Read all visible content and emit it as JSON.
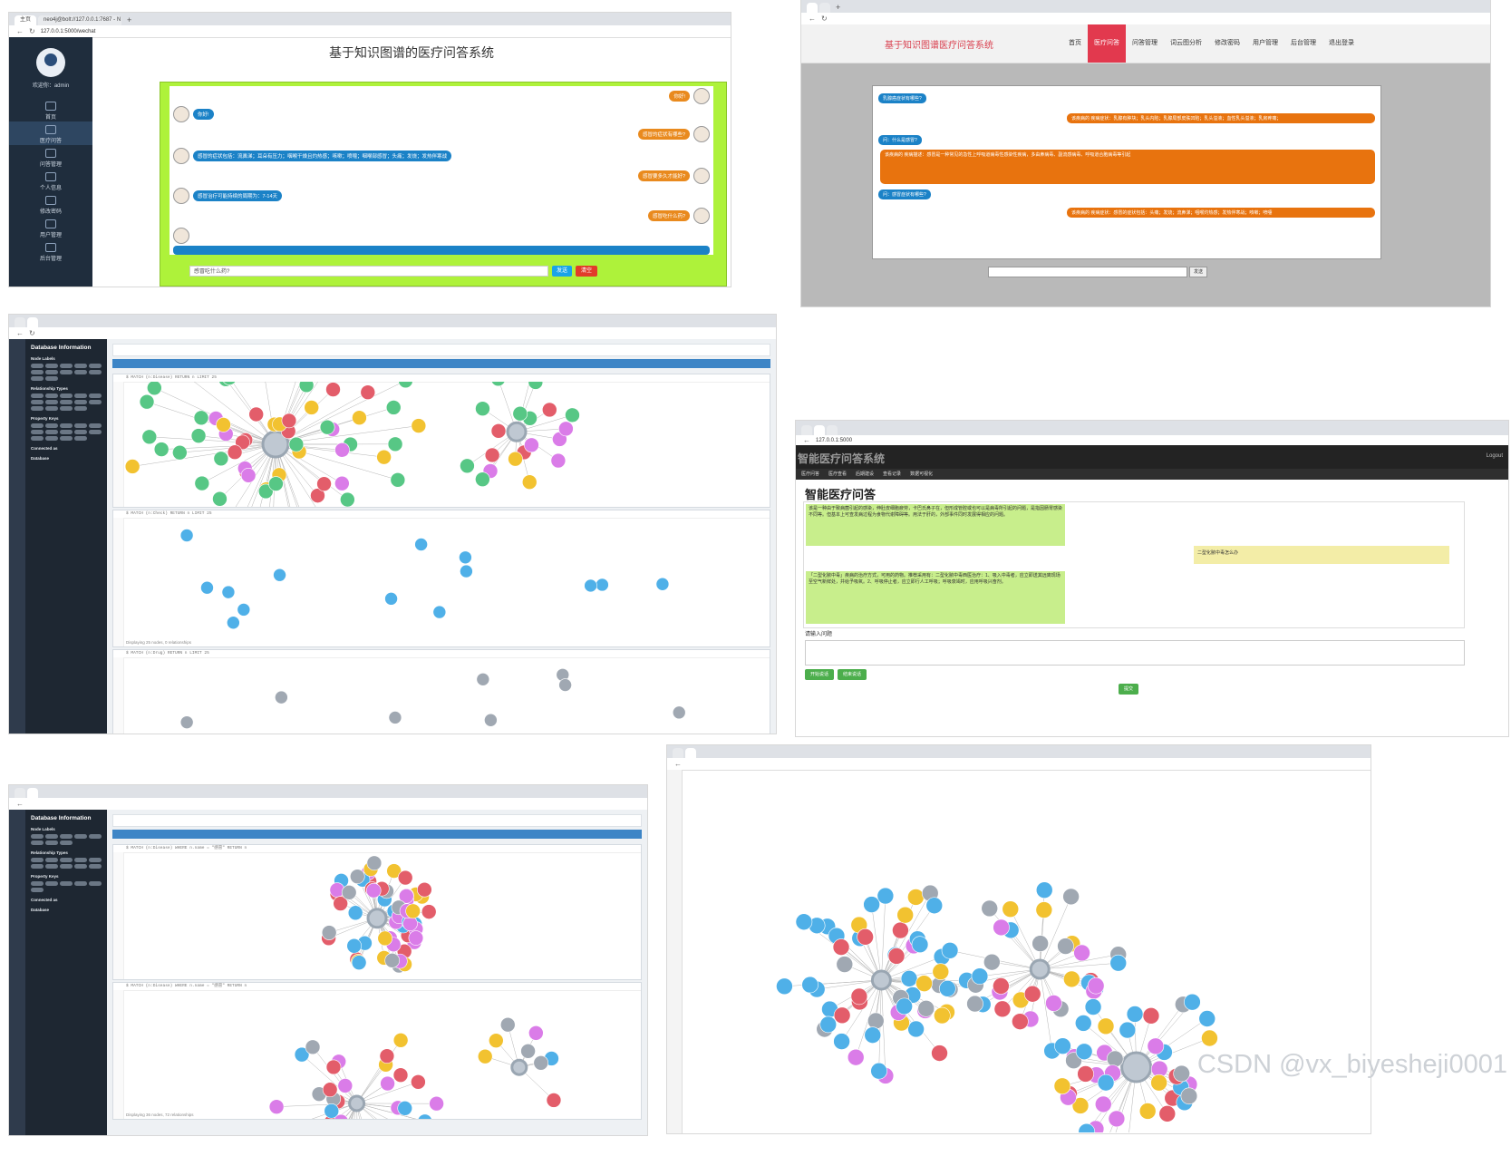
{
  "watermark": "CSDN @vx_biyesheji0001",
  "shot1": {
    "tab_label": "主页",
    "tab2_label": "neo4j@bolt://127.0.0.1:7687 - N",
    "url": "127.0.0.1:5000/wechat",
    "welcome": "欢迎你：admin",
    "menu": [
      "首页",
      "医疗问答",
      "问答管理",
      "个人信息",
      "修改密码",
      "用户管理",
      "后台管理"
    ],
    "page_title": "基于知识图谱的医疗问答系统",
    "messages": [
      {
        "side": "right",
        "text": "你好!"
      },
      {
        "side": "left",
        "text": "你好!"
      },
      {
        "side": "right",
        "text": "感冒的症状有哪些?"
      },
      {
        "side": "left",
        "text": "感冒的症状包括：流鼻涕；耳朵有压力；咽喉干燥且灼热感；咳嗽；喷嚏；咽喉部感冒；头痛；发烧；发热伴寒战"
      },
      {
        "side": "right",
        "text": "感冒要多久才能好?"
      },
      {
        "side": "left",
        "text": "感冒治疗可能持续的周期为：7-14天"
      },
      {
        "side": "right",
        "text": "感冒吃什么药?"
      }
    ],
    "input_value": "感冒吃什么药?",
    "send_label": "发送",
    "clear_label": "清空"
  },
  "shot2": {
    "logo": "基于知识图谱医疗问答系统",
    "nav": [
      "首页",
      "医疗问答",
      "问答管理",
      "词云图分析",
      "修改密码",
      "用户管理",
      "后台管理",
      "退出登录"
    ],
    "messages": [
      {
        "type": "q",
        "text": "乳腺癌症状有哪些?"
      },
      {
        "type": "a",
        "text": "该疾病的 疾病症状：乳腺有肿块；乳头内陷；乳腺局部皮肤凹陷；乳头溢液；血性乳头溢液；乳房疼痛；"
      },
      {
        "type": "q",
        "text": "问：什么是感冒?"
      },
      {
        "type": "a",
        "text": "该疾病的 疾病描述：感冒是一种常见的急性上呼吸道病毒性感染性疾病，多由鼻病毒、副流感病毒、呼吸道合胞病毒等引起"
      },
      {
        "type": "q",
        "text": "问：感冒症状有哪些?"
      },
      {
        "type": "a",
        "text": "该疾病的 疾病症状：感冒的症状包括：头痛；发烧；流鼻涕；咽喉灼热感；发热伴寒战；咳嗽；喷嚏"
      }
    ],
    "send_label": "发送"
  },
  "neo": {
    "db_title": "Database Information",
    "node_labels": "Node Labels",
    "rel_types": "Relationship Types",
    "prop_keys": "Property Keys",
    "connected": "Connected as",
    "database": "Database",
    "query1": "$ MATCH (n:Disease) RETURN n LIMIT 25",
    "query2": "$ MATCH (n:Check) RETURN n LIMIT 25",
    "query3": "$ MATCH (n:Drug) RETURN n LIMIT 25",
    "query4": "$ MATCH (n:Disease) WHERE n.name = \"感冒\" RETURN n",
    "footer_s3": "Displaying 25 nodes, 0 relationships",
    "footer_s5": "Displaying 36 nodes, 72 relationships"
  },
  "shot4": {
    "url": "127.0.0.1:5000",
    "brand": "智能医疗问答系统",
    "logout": "Logout",
    "menu": [
      "医疗问答",
      "医疗查看",
      "后期建设",
      "查看记录",
      "数据可视化"
    ],
    "title": "智能医疗问答",
    "answer1": "该是一种由于致病菌引起的感染，伸肚皮细胞疲劳，卡巴氏鼻子在，但形成管腔或也可以是病毒所引起的问题，是指因肠胃感染不同等。但基本上可查发病过程为食物代谢障碍等。用法于肝的，外部事件同时发展得相应的问题。",
    "question": "二型化脓中毒怎么办",
    "answer2": "「二型化脓中毒」疾病的治疗方式，可用的药物。推荐采用有：二型化脓中毒西医治疗：1、吸入中毒者，应立即送其远离现场至空气新鲜处，并给予吸氧。2、呼吸停止者，应立即行人工呼吸；呼吸衰竭时，应用呼吸兴奋剂。",
    "input_label": "请输入问题",
    "btn_start": "开始说话",
    "btn_stop": "结束说话",
    "btn_submit": "提交"
  }
}
